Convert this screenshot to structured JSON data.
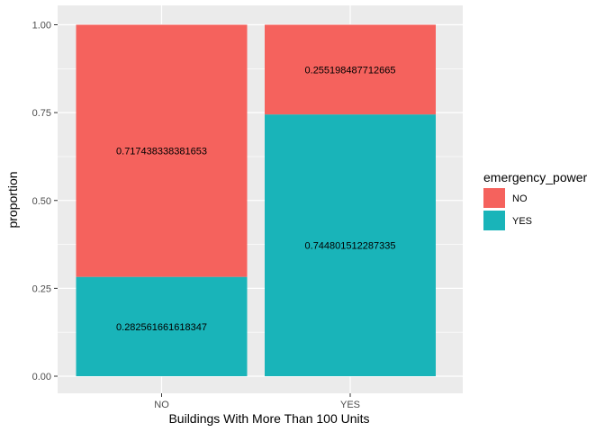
{
  "chart_data": {
    "type": "bar",
    "stacked": true,
    "categories": [
      "NO",
      "YES"
    ],
    "series": [
      {
        "name": "YES",
        "values": [
          0.282561661618347,
          0.744801512287335
        ],
        "color": "#19B4B9"
      },
      {
        "name": "NO",
        "values": [
          0.717438338381653,
          0.255198487712665
        ],
        "color": "#F5625D"
      }
    ],
    "data_labels": [
      {
        "category": "NO",
        "series": "YES",
        "text": "0.282561661618347"
      },
      {
        "category": "NO",
        "series": "NO",
        "text": "0.717438338381653"
      },
      {
        "category": "YES",
        "series": "YES",
        "text": "0.744801512287335"
      },
      {
        "category": "YES",
        "series": "NO",
        "text": "0.255198487712665"
      }
    ],
    "xlabel": "Buildings With More Than 100 Units",
    "ylabel": "proportion",
    "ylim": [
      0,
      1
    ],
    "yticks": [
      "0.00",
      "0.25",
      "0.50",
      "0.75",
      "1.00"
    ],
    "ytick_values": [
      0,
      0.25,
      0.5,
      0.75,
      1.0
    ],
    "grid": true,
    "panel_background": "#EBEBEB",
    "grid_color": "#FFFFFF",
    "legend": {
      "title": "emergency_power",
      "placement": "right",
      "entries": [
        {
          "label": "NO",
          "color": "#F5625D"
        },
        {
          "label": "YES",
          "color": "#19B4B9"
        }
      ]
    }
  }
}
